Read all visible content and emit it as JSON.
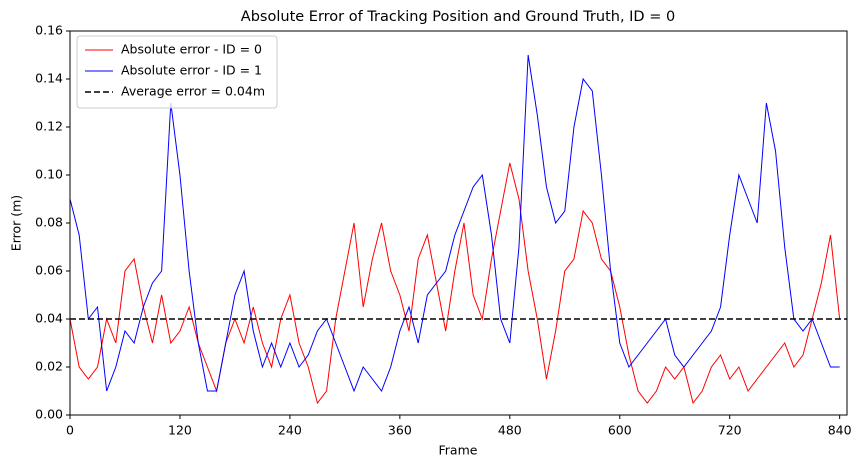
{
  "chart_data": {
    "type": "line",
    "title": "Absolute Error of Tracking Position and Ground Truth, ID = 0",
    "x_label": "Frame",
    "y_label": "Error (m)",
    "x": [
      0,
      10,
      20,
      30,
      40,
      50,
      60,
      70,
      80,
      90,
      100,
      110,
      120,
      130,
      140,
      150,
      160,
      170,
      180,
      190,
      200,
      210,
      220,
      230,
      240,
      250,
      260,
      270,
      280,
      290,
      300,
      310,
      320,
      330,
      340,
      350,
      360,
      370,
      380,
      390,
      400,
      410,
      420,
      430,
      440,
      450,
      460,
      470,
      480,
      490,
      500,
      510,
      520,
      530,
      540,
      550,
      560,
      570,
      580,
      590,
      600,
      610,
      620,
      630,
      640,
      650,
      660,
      670,
      680,
      690,
      700,
      710,
      720,
      730,
      740,
      750,
      760,
      770,
      780,
      790,
      800,
      810,
      820,
      830,
      840
    ],
    "series": [
      {
        "name": "Absolute error - ID = 0",
        "color": "#ff0000",
        "values": [
          0.04,
          0.02,
          0.015,
          0.02,
          0.04,
          0.03,
          0.06,
          0.065,
          0.045,
          0.03,
          0.05,
          0.03,
          0.035,
          0.045,
          0.03,
          0.02,
          0.01,
          0.03,
          0.04,
          0.03,
          0.045,
          0.03,
          0.02,
          0.04,
          0.05,
          0.03,
          0.02,
          0.005,
          0.01,
          0.04,
          0.06,
          0.08,
          0.045,
          0.065,
          0.08,
          0.06,
          0.05,
          0.035,
          0.065,
          0.075,
          0.055,
          0.035,
          0.06,
          0.08,
          0.05,
          0.04,
          0.065,
          0.085,
          0.105,
          0.09,
          0.06,
          0.04,
          0.015,
          0.035,
          0.06,
          0.065,
          0.085,
          0.08,
          0.065,
          0.06,
          0.045,
          0.025,
          0.01,
          0.005,
          0.01,
          0.02,
          0.015,
          0.02,
          0.005,
          0.01,
          0.02,
          0.025,
          0.015,
          0.02,
          0.01,
          0.015,
          0.02,
          0.025,
          0.03,
          0.02,
          0.025,
          0.04,
          0.055,
          0.075,
          0.04
        ]
      },
      {
        "name": "Absolute error - ID = 1",
        "color": "#0000ff",
        "values": [
          0.09,
          0.075,
          0.04,
          0.045,
          0.01,
          0.02,
          0.035,
          0.03,
          0.045,
          0.055,
          0.06,
          0.13,
          0.1,
          0.06,
          0.03,
          0.01,
          0.01,
          0.03,
          0.05,
          0.06,
          0.035,
          0.02,
          0.03,
          0.02,
          0.03,
          0.02,
          0.025,
          0.035,
          0.04,
          0.03,
          0.02,
          0.01,
          0.02,
          0.015,
          0.01,
          0.02,
          0.035,
          0.045,
          0.03,
          0.05,
          0.055,
          0.06,
          0.075,
          0.085,
          0.095,
          0.1,
          0.075,
          0.04,
          0.03,
          0.07,
          0.15,
          0.125,
          0.095,
          0.08,
          0.085,
          0.12,
          0.14,
          0.135,
          0.1,
          0.06,
          0.03,
          0.02,
          0.025,
          0.03,
          0.035,
          0.04,
          0.025,
          0.02,
          0.025,
          0.03,
          0.035,
          0.045,
          0.075,
          0.1,
          0.09,
          0.08,
          0.13,
          0.11,
          0.07,
          0.04,
          0.035,
          0.04,
          0.03,
          0.02,
          0.02
        ]
      }
    ],
    "hline": {
      "name": "Average error = 0.04m",
      "value": 0.04,
      "color": "#000000"
    },
    "xlim": [
      0,
      848
    ],
    "xticks": [
      0,
      120,
      240,
      360,
      480,
      600,
      720,
      840
    ],
    "ylim": [
      0,
      0.16
    ],
    "yticks": [
      {
        "value": 0,
        "label": "0.00"
      },
      {
        "value": 0.02,
        "label": "0.02"
      },
      {
        "value": 0.04,
        "label": "0.04"
      },
      {
        "value": 0.06,
        "label": "0.06"
      },
      {
        "value": 0.08,
        "label": "0.08"
      },
      {
        "value": 0.1,
        "label": "0.10"
      },
      {
        "value": 0.12,
        "label": "0.12"
      },
      {
        "value": 0.14,
        "label": "0.14"
      },
      {
        "value": 0.16,
        "label": "0.16"
      }
    ],
    "legend": "upper left"
  }
}
